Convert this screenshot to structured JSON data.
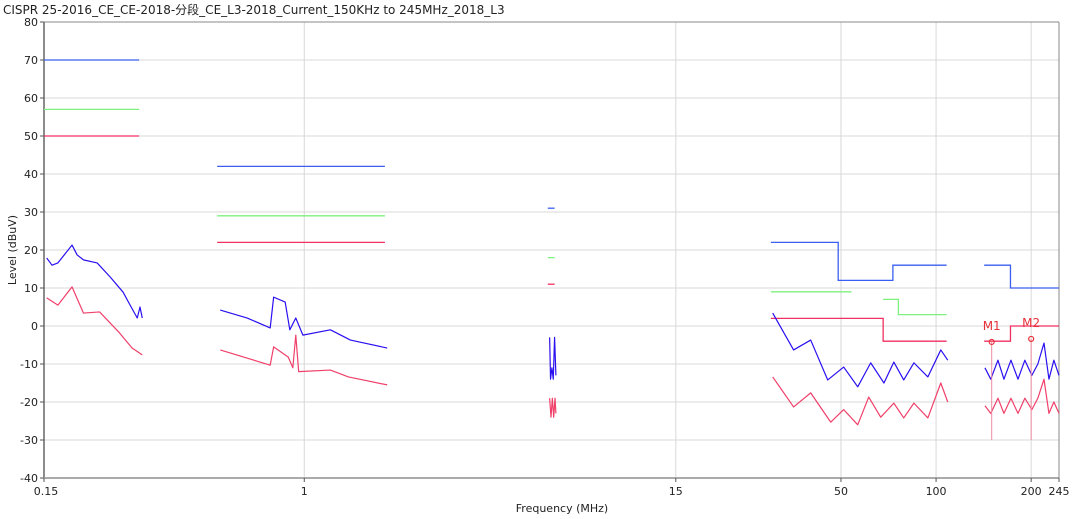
{
  "chart_data": {
    "type": "line",
    "title": "CISPR 25-2016_CE_CE-2018-分段_CE_L3-2018_Current_150KHz to 245MHz_2018_L3",
    "xlabel": "Frequency (MHz)",
    "ylabel": "Level (dBuV)",
    "xscale": "log",
    "xlim": [
      0.15,
      245
    ],
    "ylim": [
      -40,
      80
    ],
    "grid": true,
    "xticks": [
      0.15,
      1,
      15,
      50,
      100,
      200,
      245
    ],
    "xtick_labels": [
      "0.15",
      "1",
      "15",
      "50",
      "100",
      "200",
      "245"
    ],
    "yticks": [
      -40,
      -30,
      -20,
      -10,
      0,
      10,
      20,
      30,
      40,
      50,
      60,
      70,
      80
    ],
    "colors": {
      "peak": "#2a10f0",
      "average": "#f0406a",
      "limit_peak": "#3a5ff0",
      "limit_qp": "#7ef07e",
      "limit_avg": "#f03060",
      "marker": "#e8303a"
    },
    "limits": [
      {
        "color": "limit_peak",
        "segments": [
          [
            0.15,
            0.3,
            70
          ],
          [
            0.53,
            1.8,
            42
          ],
          [
            5.9,
            6.2,
            31
          ],
          [
            30,
            49,
            22
          ],
          [
            49,
            73,
            12
          ],
          [
            73,
            108,
            16
          ],
          [
            142,
            172,
            16
          ],
          [
            172,
            245,
            10
          ]
        ]
      },
      {
        "color": "limit_qp",
        "segments": [
          [
            0.15,
            0.3,
            57
          ],
          [
            0.53,
            1.8,
            29
          ],
          [
            5.9,
            6.2,
            18
          ],
          [
            30,
            54,
            9
          ],
          [
            68,
            76,
            7
          ],
          [
            76,
            108,
            3
          ]
        ]
      },
      {
        "color": "limit_avg",
        "segments": [
          [
            0.15,
            0.3,
            50
          ],
          [
            0.53,
            1.8,
            22
          ],
          [
            5.9,
            6.2,
            11
          ],
          [
            30,
            68,
            2
          ],
          [
            68,
            108,
            -4
          ],
          [
            142,
            172,
            -4
          ],
          [
            172,
            245,
            0
          ]
        ]
      }
    ],
    "series": [
      {
        "color": "peak",
        "segments": [
          [
            [
              0.153,
              17.9
            ],
            [
              0.159,
              16
            ],
            [
              0.166,
              16.6
            ],
            [
              0.184,
              21.3
            ],
            [
              0.191,
              18.7
            ],
            [
              0.2,
              17.4
            ],
            [
              0.221,
              16.6
            ],
            [
              0.243,
              12.9
            ],
            [
              0.267,
              8.9
            ],
            [
              0.281,
              5.5
            ],
            [
              0.296,
              2.1
            ],
            [
              0.302,
              5
            ],
            [
              0.307,
              2.1
            ]
          ],
          [
            [
              0.542,
              4.2
            ],
            [
              0.66,
              2.1
            ],
            [
              0.78,
              -0.5
            ],
            [
              0.8,
              7.6
            ],
            [
              0.87,
              6.3
            ],
            [
              0.9,
              -1
            ],
            [
              0.94,
              2.1
            ],
            [
              0.99,
              -2.4
            ],
            [
              1.21,
              -1
            ],
            [
              1.4,
              -3.7
            ],
            [
              1.83,
              -5.8
            ]
          ],
          [
            [
              5.98,
              -3
            ],
            [
              6.02,
              -14
            ],
            [
              6.08,
              -11
            ],
            [
              6.14,
              -14
            ],
            [
              6.2,
              -3
            ],
            [
              6.26,
              -13
            ]
          ],
          [
            [
              30.4,
              3.4
            ],
            [
              35.4,
              -6.3
            ],
            [
              40.1,
              -3.7
            ],
            [
              45.4,
              -14.2
            ],
            [
              51,
              -10.8
            ],
            [
              56.5,
              -16
            ],
            [
              62.1,
              -9.7
            ],
            [
              68.4,
              -15
            ],
            [
              73.5,
              -9.5
            ],
            [
              79,
              -14.2
            ],
            [
              85.1,
              -9.7
            ],
            [
              94.2,
              -13.4
            ],
            [
              103.5,
              -6.3
            ],
            [
              108.9,
              -9
            ]
          ],
          [
            [
              142.8,
              -11
            ],
            [
              149,
              -14
            ],
            [
              157,
              -9
            ],
            [
              164,
              -14
            ],
            [
              172.6,
              -9
            ],
            [
              181.7,
              -14
            ],
            [
              191,
              -9
            ],
            [
              201,
              -13
            ],
            [
              210,
              -10
            ],
            [
              219.6,
              -4.5
            ],
            [
              227.7,
              -14
            ],
            [
              236,
              -9
            ],
            [
              245,
              -13
            ]
          ]
        ]
      },
      {
        "color": "average",
        "segments": [
          [
            [
              0.153,
              7.4
            ],
            [
              0.166,
              5.5
            ],
            [
              0.184,
              10.3
            ],
            [
              0.2,
              3.4
            ],
            [
              0.225,
              3.7
            ],
            [
              0.26,
              -1.8
            ],
            [
              0.285,
              -5.8
            ],
            [
              0.307,
              -7.6
            ]
          ],
          [
            [
              0.542,
              -6.3
            ],
            [
              0.78,
              -10.3
            ],
            [
              0.8,
              -5.5
            ],
            [
              0.89,
              -8.2
            ],
            [
              0.92,
              -11
            ],
            [
              0.94,
              -2.4
            ],
            [
              0.96,
              -12
            ],
            [
              1.21,
              -11.6
            ],
            [
              1.38,
              -13.4
            ],
            [
              1.83,
              -15.5
            ]
          ],
          [
            [
              5.98,
              -19
            ],
            [
              6.04,
              -24
            ],
            [
              6.1,
              -19
            ],
            [
              6.16,
              -24
            ],
            [
              6.22,
              -19
            ],
            [
              6.26,
              -23
            ]
          ],
          [
            [
              30.4,
              -13.4
            ],
            [
              35.4,
              -21.3
            ],
            [
              40.1,
              -17.6
            ],
            [
              46.4,
              -25.3
            ],
            [
              51,
              -22
            ],
            [
              56.5,
              -26
            ],
            [
              61.2,
              -18.7
            ],
            [
              66.8,
              -24
            ],
            [
              73.5,
              -20.3
            ],
            [
              79,
              -24.2
            ],
            [
              85.1,
              -20.3
            ],
            [
              94.2,
              -24.2
            ],
            [
              103.5,
              -15
            ],
            [
              108.9,
              -20
            ]
          ],
          [
            [
              142.8,
              -21
            ],
            [
              149,
              -23
            ],
            [
              157,
              -19
            ],
            [
              164,
              -23
            ],
            [
              172.6,
              -19
            ],
            [
              181.7,
              -23
            ],
            [
              191,
              -19
            ],
            [
              201,
              -22
            ],
            [
              210,
              -19
            ],
            [
              219.6,
              -14
            ],
            [
              227.7,
              -23
            ],
            [
              236,
              -20
            ],
            [
              245,
              -23
            ]
          ]
        ]
      }
    ],
    "markers": [
      {
        "label": "M1",
        "x": 150,
        "y": -4.2
      },
      {
        "label": "M2",
        "x": 200,
        "y": -3.4
      }
    ]
  }
}
